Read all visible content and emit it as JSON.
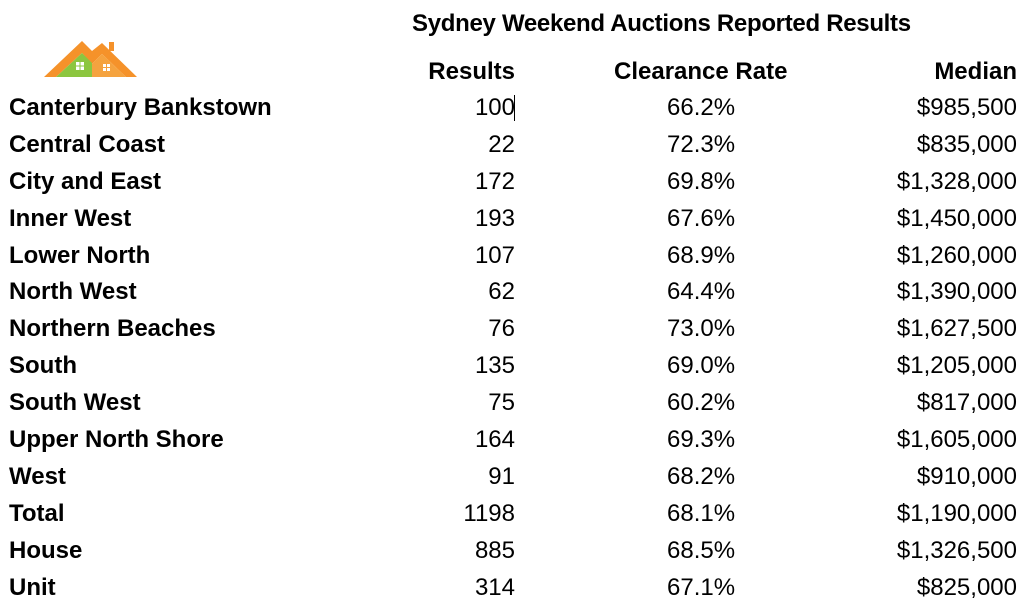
{
  "title": "Sydney Weekend Auctions Reported Results",
  "logo": {
    "icon": "house-roof-logo-icon",
    "colors": {
      "orange": "#F5922A",
      "green": "#8CC63F"
    }
  },
  "headers": {
    "results": "Results",
    "clearance_rate": "Clearance Rate",
    "median": "Median"
  },
  "rows": [
    {
      "region": "Canterbury Bankstown",
      "results": "100",
      "clearance_rate": "66.2%",
      "median": "$985,500"
    },
    {
      "region": "Central Coast",
      "results": "22",
      "clearance_rate": "72.3%",
      "median": "$835,000"
    },
    {
      "region": "City and East",
      "results": "172",
      "clearance_rate": "69.8%",
      "median": "$1,328,000"
    },
    {
      "region": "Inner West",
      "results": "193",
      "clearance_rate": "67.6%",
      "median": "$1,450,000"
    },
    {
      "region": "Lower North",
      "results": "107",
      "clearance_rate": "68.9%",
      "median": "$1,260,000"
    },
    {
      "region": "North West",
      "results": "62",
      "clearance_rate": "64.4%",
      "median": "$1,390,000"
    },
    {
      "region": "Northern Beaches",
      "results": "76",
      "clearance_rate": "73.0%",
      "median": "$1,627,500"
    },
    {
      "region": "South",
      "results": "135",
      "clearance_rate": "69.0%",
      "median": "$1,205,000"
    },
    {
      "region": "South West",
      "results": "75",
      "clearance_rate": "60.2%",
      "median": "$817,000"
    },
    {
      "region": "Upper North Shore",
      "results": "164",
      "clearance_rate": "69.3%",
      "median": "$1,605,000"
    },
    {
      "region": "West",
      "results": "91",
      "clearance_rate": "68.2%",
      "median": "$910,000"
    },
    {
      "region": "Total",
      "results": "1198",
      "clearance_rate": "68.1%",
      "median": "$1,190,000"
    },
    {
      "region": "House",
      "results": "885",
      "clearance_rate": "68.5%",
      "median": "$1,326,500"
    },
    {
      "region": "Unit",
      "results": "314",
      "clearance_rate": "67.1%",
      "median": "$825,000"
    }
  ]
}
